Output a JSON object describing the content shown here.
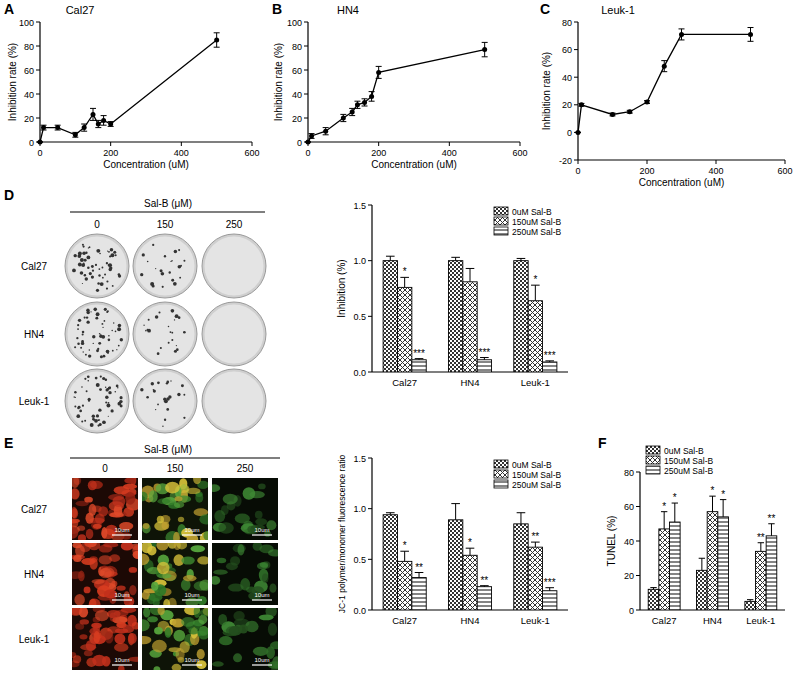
{
  "chart_data": [
    {
      "type": "line",
      "title": "Cal27",
      "x_label": "Concentration (uM)",
      "y_label": "Inhibition rate (%)",
      "x": [
        0,
        10,
        50,
        100,
        125,
        150,
        165,
        180,
        200,
        500
      ],
      "values": [
        0,
        12,
        12,
        6,
        12,
        23,
        15,
        18,
        15,
        85
      ],
      "errors": [
        0,
        2,
        2,
        2,
        3,
        5,
        3,
        4,
        2,
        6
      ],
      "color": "#000000",
      "marker": "circle",
      "xlim": [
        0,
        600
      ],
      "xticks": [
        0,
        200,
        400,
        600
      ],
      "ylim": [
        0,
        100
      ],
      "yticks": [
        0,
        20,
        40,
        60,
        80,
        100
      ]
    },
    {
      "type": "line",
      "title": "HN4",
      "x_label": "Concentration (uM)",
      "y_label": "Inhibition rate (%)",
      "x": [
        0,
        10,
        50,
        100,
        125,
        140,
        160,
        180,
        200,
        500
      ],
      "values": [
        0,
        5,
        9,
        20,
        25,
        31,
        33,
        38,
        58,
        77
      ],
      "errors": [
        0,
        2,
        3,
        3,
        3,
        3,
        3,
        4,
        5,
        6
      ],
      "color": "#000000",
      "marker": "circle",
      "xlim": [
        0,
        600
      ],
      "xticks": [
        0,
        200,
        400,
        600
      ],
      "ylim": [
        0,
        100
      ],
      "yticks": [
        0,
        20,
        40,
        60,
        80,
        100
      ]
    },
    {
      "type": "line",
      "title": "Leuk-1",
      "x_label": "Concentration (uM)",
      "y_label": "Inhibition rate (%)",
      "x": [
        0,
        10,
        100,
        150,
        200,
        250,
        300,
        500
      ],
      "values": [
        0,
        20,
        13,
        15,
        22,
        48,
        71,
        71
      ],
      "errors": [
        0,
        1,
        1,
        1,
        1,
        4,
        4,
        5
      ],
      "color": "#000000",
      "marker": "circle",
      "xlim": [
        0,
        600
      ],
      "xticks": [
        0,
        200,
        400,
        600
      ],
      "ylim": [
        -20,
        80
      ],
      "yticks": [
        -20,
        0,
        20,
        40,
        60,
        80
      ]
    },
    {
      "type": "bar",
      "y_label": "Inhibition (%)",
      "categories": [
        "Cal27",
        "HN4",
        "Leuk-1"
      ],
      "ylim": [
        0,
        1.5
      ],
      "yticks": [
        {
          "value": 0,
          "label": "0.0"
        },
        0.5,
        {
          "value": 1,
          "label": "1.0"
        },
        1.5
      ],
      "legend": "top-right",
      "series": [
        {
          "name": "0uM Sal-B",
          "color": "#333333",
          "values": [
            1.0,
            1.0,
            1.0
          ],
          "errors": [
            0.04,
            0.03,
            0.02
          ]
        },
        {
          "name": "150uM Sal-B",
          "color": "#333333",
          "values": [
            0.76,
            0.81,
            0.64
          ],
          "errors": [
            0.09,
            0.12,
            0.14
          ],
          "significance": [
            "*",
            null,
            "*"
          ]
        },
        {
          "name": "250uM Sal-B",
          "color": "#333333",
          "values": [
            0.11,
            0.11,
            0.09
          ],
          "errors": [
            0.01,
            0.02,
            0.01
          ],
          "significance": [
            "***",
            "***",
            "***"
          ]
        }
      ]
    },
    {
      "type": "bar",
      "y_label": "JC-1 polymer/monomer fluorescence ratio",
      "categories": [
        "Cal27",
        "HN4",
        "Leuk-1"
      ],
      "ylim": [
        0,
        1.5
      ],
      "yticks": [
        {
          "value": 0,
          "label": "0.0"
        },
        0.5,
        {
          "value": 1,
          "label": "1.0"
        },
        1.5
      ],
      "legend": "top-right",
      "series": [
        {
          "name": "0uM Sal-B",
          "color": "#333333",
          "values": [
            0.94,
            0.89,
            0.85
          ],
          "errors": [
            0.02,
            0.16,
            0.11
          ]
        },
        {
          "name": "150uM Sal-B",
          "color": "#333333",
          "values": [
            0.48,
            0.54,
            0.62
          ],
          "errors": [
            0.1,
            0.07,
            0.05
          ],
          "significance": [
            "*",
            "*",
            "**"
          ]
        },
        {
          "name": "250uM Sal-B",
          "color": "#333333",
          "values": [
            0.32,
            0.23,
            0.19
          ],
          "errors": [
            0.05,
            0.01,
            0.03
          ],
          "significance": [
            "**",
            "**",
            "***"
          ]
        }
      ]
    },
    {
      "type": "bar",
      "y_label": "TUNEL (%)",
      "categories": [
        "Cal27",
        "HN4",
        "Leuk-1"
      ],
      "ylim": [
        0,
        80
      ],
      "yticks": [
        0,
        20,
        40,
        60,
        80
      ],
      "legend": "top-left",
      "series": [
        {
          "name": "0uM Sal-B",
          "color": "#333333",
          "values": [
            12,
            23,
            5
          ],
          "errors": [
            1,
            7,
            1
          ]
        },
        {
          "name": "150uM Sal-B",
          "color": "#333333",
          "values": [
            47,
            57,
            34
          ],
          "errors": [
            10,
            9,
            5
          ],
          "significance": [
            "*",
            "*",
            "**"
          ]
        },
        {
          "name": "250uM Sal-B",
          "color": "#333333",
          "values": [
            51,
            54,
            43
          ],
          "errors": [
            11,
            10,
            7
          ],
          "significance": [
            "*",
            "*",
            "**"
          ]
        }
      ]
    }
  ],
  "figure": {
    "panel_labels": [
      "A",
      "B",
      "C",
      "D",
      "E",
      "F"
    ],
    "colony": {
      "header": "Sal-B (μM)",
      "doses": [
        "0",
        "150",
        "250"
      ],
      "rows": [
        "Cal27",
        "HN4",
        "Leuk-1"
      ]
    },
    "jc1": {
      "header": "Sal-B (μM)",
      "doses": [
        "0",
        "150",
        "250"
      ],
      "rows": [
        "Cal27",
        "HN4",
        "Leuk-1"
      ],
      "scale_bar": "10um"
    }
  }
}
